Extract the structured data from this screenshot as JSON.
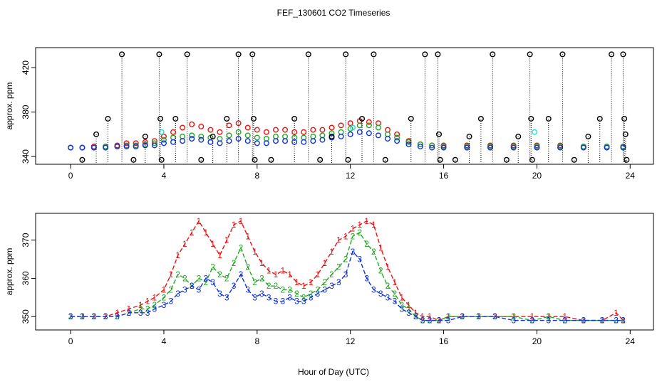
{
  "chart_data": {
    "title": "FEF_130601  CO2 Timeseries",
    "xlabel": "Hour of Day (UTC)",
    "panels": [
      {
        "type": "scatter",
        "ylabel": "approx. ppm",
        "xlim": [
          -1.5,
          25
        ],
        "ylim": [
          333,
          438
        ],
        "xticks": [
          0,
          4,
          8,
          12,
          16,
          20,
          24
        ],
        "xtick_labels": [
          "0",
          "4",
          "8",
          "12",
          "16",
          "20",
          "24"
        ],
        "yticks": [
          340,
          380,
          420
        ],
        "ytick_labels": [
          "340",
          "380",
          "420"
        ],
        "series": [
          {
            "name": "red",
            "color": "#ee1111",
            "x": [
              0,
              0.5,
              1,
              1.5,
              2,
              2.4,
              2.8,
              3.2,
              3.6,
              4,
              4.4,
              4.8,
              5.2,
              5.6,
              6,
              6.4,
              6.8,
              7.2,
              7.6,
              8,
              8.4,
              8.8,
              9.2,
              9.6,
              10,
              10.4,
              10.8,
              11.2,
              11.6,
              12,
              12.4,
              12.8,
              13.2,
              13.6,
              14,
              14.5,
              15,
              15.5,
              16,
              17,
              18,
              19,
              20,
              21,
              22,
              23,
              23.7
            ],
            "y": [
              348,
              348,
              349,
              349,
              350,
              352,
              352,
              353,
              354,
              358,
              362,
              366,
              369,
              367,
              364,
              362,
              368,
              370,
              366,
              364,
              362,
              364,
              364,
              362,
              362,
              364,
              364,
              366,
              368,
              370,
              372,
              371,
              370,
              364,
              360,
              354,
              351,
              350,
              350,
              350,
              350,
              350,
              350,
              350,
              349,
              349,
              349
            ]
          },
          {
            "name": "green",
            "color": "#22aa22",
            "x": [
              0,
              0.5,
              1,
              1.5,
              2,
              2.4,
              2.8,
              3.2,
              3.6,
              4,
              4.4,
              4.8,
              5.2,
              5.6,
              6,
              6.4,
              6.8,
              7.2,
              7.6,
              8,
              8.4,
              8.8,
              9.2,
              9.6,
              10,
              10.4,
              10.8,
              11.2,
              11.6,
              12,
              12.4,
              12.8,
              13.2,
              13.6,
              14,
              14.5,
              15,
              15.5,
              16,
              17,
              18,
              19,
              20,
              21,
              22,
              23,
              23.7
            ],
            "y": [
              348,
              348,
              348,
              349,
              349,
              350,
              350,
              351,
              352,
              355,
              357,
              358,
              359,
              358,
              357,
              356,
              359,
              362,
              359,
              357,
              356,
              358,
              358,
              357,
              357,
              358,
              359,
              361,
              362,
              365,
              368,
              368,
              366,
              360,
              357,
              353,
              351,
              350,
              349,
              349,
              349,
              349,
              349,
              349,
              349,
              349,
              349
            ]
          },
          {
            "name": "blue",
            "color": "#1133dd",
            "x": [
              0,
              0.5,
              1,
              1.5,
              2,
              2.4,
              2.8,
              3.2,
              3.6,
              4,
              4.4,
              4.8,
              5.2,
              5.6,
              6,
              6.4,
              6.8,
              7.2,
              7.6,
              8,
              8.4,
              8.8,
              9.2,
              9.6,
              10,
              10.4,
              10.8,
              11.2,
              11.6,
              12,
              12.4,
              12.8,
              13.2,
              13.6,
              14,
              14.5,
              15,
              15.5,
              16,
              17,
              18,
              19,
              20,
              21,
              22,
              23,
              23.7
            ],
            "y": [
              348,
              348,
              348,
              348,
              349,
              349,
              349,
              350,
              350,
              352,
              353,
              354,
              356,
              355,
              353,
              352,
              354,
              356,
              354,
              352,
              352,
              354,
              354,
              353,
              353,
              354,
              355,
              357,
              358,
              360,
              362,
              361,
              359,
              356,
              354,
              351,
              349,
              348,
              348,
              348,
              348,
              348,
              348,
              348,
              348,
              348,
              348
            ]
          },
          {
            "name": "cyan",
            "color": "#22dddd",
            "x": [
              3.9,
              12.1,
              19.9
            ],
            "y": [
              362,
              366,
              362
            ]
          },
          {
            "name": "black",
            "color": "#000000",
            "x": [
              0.5,
              1.1,
              1.6,
              2.2,
              2.7,
              3.2,
              3.8,
              3.85,
              3.9,
              4.5,
              5.0,
              5.6,
              6.1,
              6.7,
              7.2,
              7.8,
              7.85,
              7.9,
              8.6,
              9.6,
              10.2,
              10.7,
              11.2,
              11.8,
              11.9,
              12.5,
              13.0,
              13.5,
              14.6,
              15.2,
              15.75,
              15.8,
              15.85,
              16.5,
              17.1,
              17.6,
              18.1,
              18.7,
              19.2,
              19.7,
              19.75,
              19.8,
              20.5,
              21.1,
              21.6,
              22.2,
              22.7,
              23.2,
              23.7,
              23.75,
              23.8,
              23.85
            ],
            "y": [
              337,
              360,
              374,
              432,
              337,
              358,
              432,
              374,
              337,
              374,
              432,
              337,
              358,
              374,
              432,
              432,
              374,
              337,
              337,
              374,
              432,
              337,
              358,
              432,
              337,
              374,
              432,
              337,
              374,
              432,
              432,
              360,
              337,
              337,
              358,
              374,
              432,
              337,
              358,
              432,
              374,
              337,
              374,
              432,
              337,
              358,
              374,
              432,
              432,
              374,
              360,
              337
            ]
          }
        ]
      },
      {
        "type": "line",
        "ylabel": "approx. ppm",
        "xlim": [
          -1.5,
          25
        ],
        "ylim": [
          346.5,
          377
        ],
        "xticks": [
          0,
          4,
          8,
          12,
          16,
          20,
          24
        ],
        "xtick_labels": [
          "0",
          "4",
          "8",
          "12",
          "16",
          "20",
          "24"
        ],
        "yticks": [
          350,
          360,
          370
        ],
        "ytick_labels": [
          "350",
          "360",
          "370"
        ],
        "series": [
          {
            "name": "1",
            "color": "#ee1111",
            "x": [
              0,
              0.5,
              1,
              1.5,
              2,
              2.5,
              3,
              3.3,
              3.6,
              4,
              4.3,
              4.6,
              4.9,
              5.2,
              5.5,
              5.8,
              6.1,
              6.4,
              6.7,
              7.0,
              7.3,
              7.6,
              7.9,
              8.2,
              8.5,
              8.8,
              9.1,
              9.4,
              9.7,
              10.0,
              10.3,
              10.6,
              10.9,
              11.2,
              11.5,
              11.8,
              12.1,
              12.4,
              12.7,
              13.0,
              13.3,
              13.6,
              13.9,
              14.2,
              14.5,
              14.8,
              15.1,
              15.4,
              15.8,
              16.2,
              16.8,
              17.5,
              18.2,
              19,
              19.8,
              20.5,
              21.2,
              22,
              22.8,
              23.4,
              23.7
            ],
            "y": [
              350,
              350,
              350,
              350,
              351,
              352,
              353,
              354,
              355,
              357,
              361,
              366,
              369,
              372,
              375,
              372,
              369,
              366,
              370,
              374,
              375,
              371,
              367,
              364,
              362,
              361,
              362,
              361,
              359,
              358,
              359,
              361,
              364,
              367,
              370,
              371,
              373,
              374,
              375,
              374,
              368,
              363,
              359,
              355,
              353,
              351,
              350,
              350,
              349,
              350,
              350,
              350,
              350,
              350,
              350,
              350,
              350,
              349,
              349,
              351,
              349
            ]
          },
          {
            "name": "2",
            "color": "#22aa22",
            "x": [
              0,
              0.5,
              1,
              1.5,
              2,
              2.5,
              3,
              3.3,
              3.6,
              4,
              4.3,
              4.6,
              4.9,
              5.2,
              5.5,
              5.8,
              6.1,
              6.4,
              6.7,
              7.0,
              7.3,
              7.6,
              7.9,
              8.2,
              8.5,
              8.8,
              9.1,
              9.4,
              9.7,
              10.0,
              10.3,
              10.6,
              10.9,
              11.2,
              11.5,
              11.8,
              12.1,
              12.4,
              12.7,
              13.0,
              13.3,
              13.6,
              13.9,
              14.2,
              14.5,
              14.8,
              15.1,
              15.4,
              15.8,
              16.2,
              16.8,
              17.5,
              18.2,
              19,
              19.8,
              20.5,
              21.2,
              22,
              22.8,
              23.4,
              23.7
            ],
            "y": [
              350,
              350,
              350,
              350,
              350,
              351,
              352,
              352,
              353,
              355,
              357,
              361,
              360,
              358,
              360,
              359,
              363,
              361,
              360,
              364,
              368,
              363,
              359,
              360,
              358,
              358,
              357,
              357,
              356,
              355,
              356,
              357,
              359,
              361,
              363,
              365,
              371,
              372,
              369,
              367,
              362,
              358,
              356,
              353,
              352,
              350,
              349,
              349,
              349,
              350,
              350,
              350,
              350,
              350,
              349,
              350,
              349,
              349,
              349,
              349,
              349
            ]
          },
          {
            "name": "3",
            "color": "#1133dd",
            "x": [
              0,
              0.5,
              1,
              1.5,
              2,
              2.5,
              3,
              3.3,
              3.6,
              4,
              4.3,
              4.6,
              4.9,
              5.2,
              5.5,
              5.8,
              6.1,
              6.4,
              6.7,
              7.0,
              7.3,
              7.6,
              7.9,
              8.2,
              8.5,
              8.8,
              9.1,
              9.4,
              9.7,
              10.0,
              10.3,
              10.6,
              10.9,
              11.2,
              11.5,
              11.8,
              12.1,
              12.4,
              12.7,
              13.0,
              13.3,
              13.6,
              13.9,
              14.2,
              14.5,
              14.8,
              15.1,
              15.4,
              15.8,
              16.2,
              16.8,
              17.5,
              18.2,
              19,
              19.8,
              20.5,
              21.2,
              22,
              22.8,
              23.4,
              23.7
            ],
            "y": [
              350,
              350,
              350,
              350,
              350,
              351,
              351,
              351,
              352,
              353,
              354,
              356,
              357,
              358,
              357,
              360,
              359,
              356,
              355,
              358,
              361,
              357,
              355,
              356,
              355,
              354,
              354,
              355,
              354,
              354,
              355,
              356,
              357,
              358,
              359,
              361,
              367,
              365,
              360,
              357,
              356,
              355,
              354,
              352,
              351,
              350,
              349,
              349,
              349,
              349,
              350,
              350,
              350,
              349,
              349,
              349,
              349,
              349,
              349,
              349,
              349
            ]
          }
        ]
      }
    ]
  }
}
